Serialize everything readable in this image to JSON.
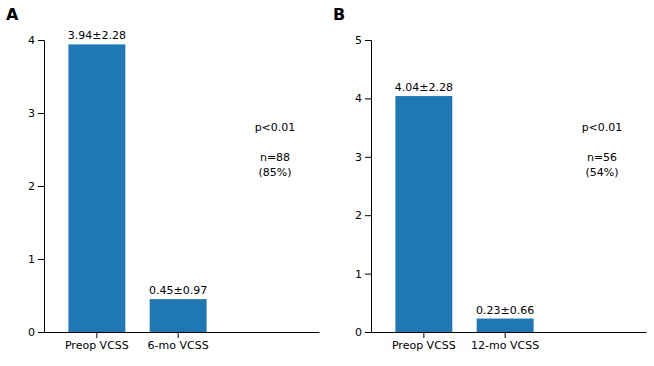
{
  "chart_data": [
    {
      "type": "bar",
      "title": "A",
      "categories": [
        "Preop VCSS",
        "6-mo VCSS"
      ],
      "values": [
        3.94,
        0.45
      ],
      "value_labels": [
        "3.94±2.28",
        "0.45±0.97"
      ],
      "data_labels": true,
      "annotation": "p<0.01\n\nn=88\n(85%)",
      "ylim": [
        0,
        4
      ],
      "yticks": [
        0,
        1,
        2,
        3,
        4
      ],
      "grid": false
    },
    {
      "type": "bar",
      "title": "B",
      "categories": [
        "Preop VCSS",
        "12-mo VCSS"
      ],
      "values": [
        4.04,
        0.23
      ],
      "value_labels": [
        "4.04±2.28",
        "0.23±0.66"
      ],
      "data_labels": true,
      "annotation": "p<0.01\n\nn=56\n(54%)",
      "ylim": [
        0,
        5
      ],
      "yticks": [
        0,
        1,
        2,
        3,
        4,
        5
      ],
      "grid": false
    }
  ]
}
